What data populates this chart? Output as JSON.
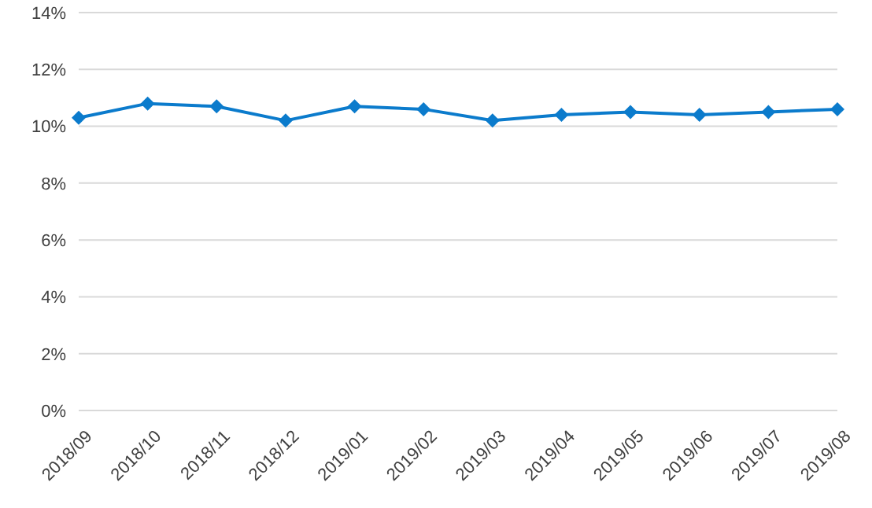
{
  "chart_data": {
    "type": "line",
    "categories": [
      "2018/09",
      "2018/10",
      "2018/11",
      "2018/12",
      "2019/01",
      "2019/02",
      "2019/03",
      "2019/04",
      "2019/05",
      "2019/06",
      "2019/07",
      "2019/08"
    ],
    "series": [
      {
        "color": "#0b7bcc",
        "values": [
          10.3,
          10.8,
          10.7,
          10.2,
          10.7,
          10.6,
          10.2,
          10.4,
          10.5,
          10.4,
          10.5,
          10.6
        ]
      }
    ],
    "ylim": [
      0,
      14
    ],
    "yticks": [
      {
        "value": 0,
        "label": "0%"
      },
      {
        "value": 2,
        "label": "2%"
      },
      {
        "value": 4,
        "label": "4%"
      },
      {
        "value": 6,
        "label": "6%"
      },
      {
        "value": 8,
        "label": "8%"
      },
      {
        "value": 10,
        "label": "10%"
      },
      {
        "value": 12,
        "label": "12%"
      },
      {
        "value": 14,
        "label": "14%"
      }
    ],
    "grid": "y",
    "marker": "diamond",
    "line_style": "solid",
    "legend": false
  }
}
